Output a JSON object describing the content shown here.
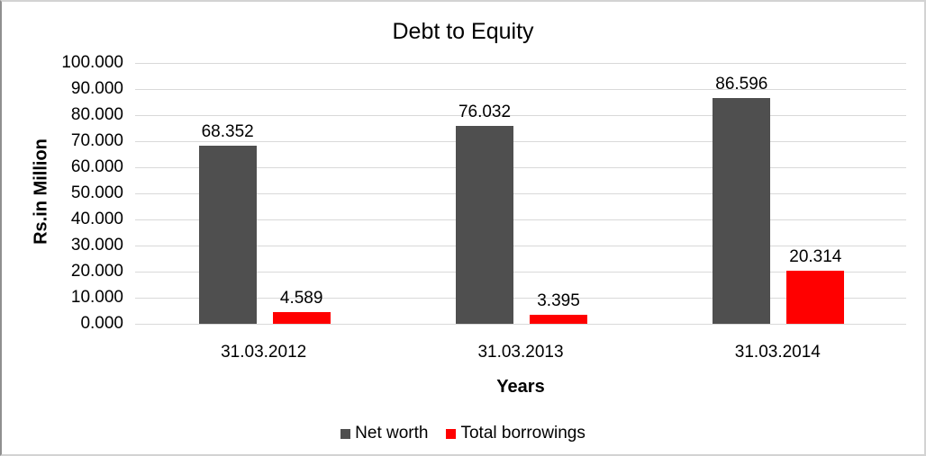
{
  "chart_data": {
    "type": "bar",
    "title": "Debt to Equity",
    "xlabel": "Years",
    "ylabel": "Rs.in Million",
    "categories": [
      "31.03.2012",
      "31.03.2013",
      "31.03.2014"
    ],
    "series": [
      {
        "name": "Net worth",
        "color": "#4f4f4f",
        "values": [
          68.352,
          76.032,
          86.596
        ]
      },
      {
        "name": "Total borrowings",
        "color": "#ff0000",
        "values": [
          4.589,
          3.395,
          20.314
        ]
      }
    ],
    "ylim": [
      0,
      100
    ],
    "ytick_labels": [
      "0.000",
      "10.000",
      "20.000",
      "30.000",
      "40.000",
      "50.000",
      "60.000",
      "70.000",
      "80.000",
      "90.000",
      "100.000"
    ],
    "value_label_decimals": 3,
    "grid": "horizontal",
    "gridline_color": "#d9d9d9",
    "legend_position": "bottom"
  }
}
